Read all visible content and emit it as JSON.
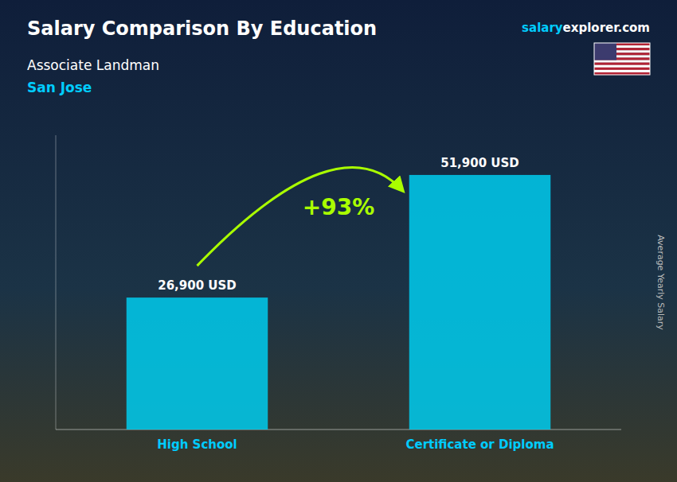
{
  "chart_data": {
    "type": "bar",
    "title": "Salary Comparison By Education",
    "subtitle": "Associate Landman",
    "categories": [
      "High School",
      "Certificate or Diploma"
    ],
    "values": [
      26900,
      51900
    ],
    "value_labels": [
      "26,900 USD",
      "51,900 USD"
    ],
    "data_labels": true,
    "color": "#00CCEE",
    "y_label": "Average Yearly Salary",
    "ylim": [
      0,
      60000
    ],
    "tick_labels": "x",
    "grid": false,
    "annotations": [
      {
        "text": "salary",
        "color": "#00CCFF"
      },
      {
        "text": "explorer.com",
        "color": "#FFFFFF"
      },
      {
        "text": "San Jose",
        "color": "#00CCFF"
      },
      {
        "text": "+93%",
        "color": "#AAFF00"
      }
    ]
  }
}
